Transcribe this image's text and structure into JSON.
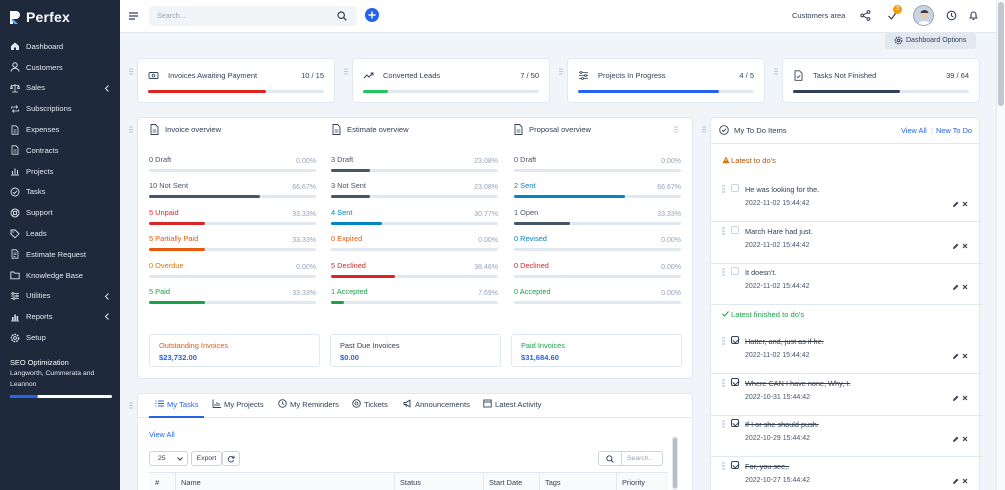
{
  "brand": {
    "name": "Perfex"
  },
  "sidebar": {
    "items": [
      {
        "label": "Dashboard",
        "icon": "home-icon",
        "chevron": false
      },
      {
        "label": "Customers",
        "icon": "user-icon",
        "chevron": false
      },
      {
        "label": "Sales",
        "icon": "scale-icon",
        "chevron": true
      },
      {
        "label": "Subscriptions",
        "icon": "repeat-icon",
        "chevron": false
      },
      {
        "label": "Expenses",
        "icon": "file-icon",
        "chevron": false
      },
      {
        "label": "Contracts",
        "icon": "file-icon",
        "chevron": false
      },
      {
        "label": "Projects",
        "icon": "chart-icon",
        "chevron": false
      },
      {
        "label": "Tasks",
        "icon": "check-circle-icon",
        "chevron": false
      },
      {
        "label": "Support",
        "icon": "lifebuoy-icon",
        "chevron": false
      },
      {
        "label": "Leads",
        "icon": "tag-icon",
        "chevron": false
      },
      {
        "label": "Estimate Request",
        "icon": "document-icon",
        "chevron": false
      },
      {
        "label": "Knowledge Base",
        "icon": "folder-icon",
        "chevron": false
      },
      {
        "label": "Utilities",
        "icon": "sliders-icon",
        "chevron": true
      },
      {
        "label": "Reports",
        "icon": "bar-chart-icon",
        "chevron": true
      },
      {
        "label": "Setup",
        "icon": "gear-icon",
        "chevron": false
      }
    ],
    "seo": {
      "title": "SEO Optimization",
      "subtitle": "Langworth, Cummerata and Leannon",
      "progress": 0.27
    }
  },
  "topbar": {
    "search_placeholder": "Search...",
    "customers_area": "Customers area",
    "tasks_badge": "3"
  },
  "dashboard_options": "Dashboard Options",
  "stats": [
    {
      "label": "Invoices Awaiting Payment",
      "value": "10 / 15",
      "progress": 0.67,
      "color": "#dc2626",
      "icon": "money-icon"
    },
    {
      "label": "Converted Leads",
      "value": "7 / 50",
      "progress": 0.14,
      "color": "#22c55e",
      "icon": "trend-icon"
    },
    {
      "label": "Projects In Progress",
      "value": "4 / 5",
      "progress": 0.8,
      "color": "#2563eb",
      "icon": "sliders-icon"
    },
    {
      "label": "Tasks Not Finished",
      "value": "39 / 64",
      "progress": 0.61,
      "color": "#334155",
      "icon": "task-file-icon"
    }
  ],
  "overview": {
    "invoice": {
      "title": "Invoice overview",
      "rows": [
        {
          "label": "0 Draft",
          "percent": "0.00%",
          "value": 0.0,
          "color": "#475569"
        },
        {
          "label": "10 Not Sent",
          "percent": "66.67%",
          "value": 0.6667,
          "color": "#475569"
        },
        {
          "label": "5 Unpaid",
          "percent": "33.33%",
          "value": 0.3333,
          "color": "#dc2626"
        },
        {
          "label": "5 Partially Paid",
          "percent": "33.33%",
          "value": 0.3333,
          "color": "#ea580c"
        },
        {
          "label": "0 Overdue",
          "percent": "0.00%",
          "value": 0.0,
          "color": "#d97706"
        },
        {
          "label": "5 Paid",
          "percent": "33.33%",
          "value": 0.3333,
          "color": "#16a34a"
        }
      ]
    },
    "estimate": {
      "title": "Estimate overview",
      "rows": [
        {
          "label": "3 Draft",
          "percent": "23.08%",
          "value": 0.2308,
          "color": "#475569"
        },
        {
          "label": "3 Not Sent",
          "percent": "23.08%",
          "value": 0.2308,
          "color": "#475569"
        },
        {
          "label": "4 Sent",
          "percent": "30.77%",
          "value": 0.3077,
          "color": "#0284c7"
        },
        {
          "label": "0 Expired",
          "percent": "0.00%",
          "value": 0.0,
          "color": "#ea580c"
        },
        {
          "label": "5 Declined",
          "percent": "38.46%",
          "value": 0.3846,
          "color": "#dc2626"
        },
        {
          "label": "1 Accepted",
          "percent": "7.69%",
          "value": 0.0769,
          "color": "#16a34a"
        }
      ]
    },
    "proposal": {
      "title": "Proposal overview",
      "rows": [
        {
          "label": "0 Draft",
          "percent": "0.00%",
          "value": 0.0,
          "color": "#475569"
        },
        {
          "label": "2 Sent",
          "percent": "66.67%",
          "value": 0.6667,
          "color": "#0284c7"
        },
        {
          "label": "1 Open",
          "percent": "33.33%",
          "value": 0.3333,
          "color": "#475569"
        },
        {
          "label": "0 Revised",
          "percent": "0.00%",
          "value": 0.0,
          "color": "#0284c7"
        },
        {
          "label": "0 Declined",
          "percent": "0.00%",
          "value": 0.0,
          "color": "#dc2626"
        },
        {
          "label": "0 Accepted",
          "percent": "0.00%",
          "value": 0.0,
          "color": "#16a34a"
        }
      ]
    },
    "totals": [
      {
        "label": "Outstanding Invoices",
        "value": "$23,732.00",
        "label_color": "#ea580c",
        "value_color": "#2563eb"
      },
      {
        "label": "Past Due Invoices",
        "value": "$0.00",
        "label_color": "#334155",
        "value_color": "#2563eb"
      },
      {
        "label": "Paid Invoices",
        "value": "$31,684.60",
        "label_color": "#16a34a",
        "value_color": "#2563eb"
      }
    ]
  },
  "tabs": [
    {
      "label": "My Tasks",
      "icon": "list-icon",
      "active": true
    },
    {
      "label": "My Projects",
      "icon": "chart-icon",
      "active": false
    },
    {
      "label": "My Reminders",
      "icon": "clock-icon",
      "active": false
    },
    {
      "label": "Tickets",
      "icon": "lifebuoy-icon",
      "active": false
    },
    {
      "label": "Announcements",
      "icon": "megaphone-icon",
      "active": false
    },
    {
      "label": "Latest Activity",
      "icon": "window-icon",
      "active": false
    }
  ],
  "tasks_panel": {
    "view_all": "View All",
    "page_length": "25",
    "export": "Export",
    "search_placeholder": "Search..",
    "columns": [
      "#",
      "Name",
      "Status",
      "Start Date",
      "Tags",
      "Priority"
    ]
  },
  "todo": {
    "title": "My To Do Items",
    "view_all": "View All",
    "new_todo": "New To Do",
    "latest_title": "Latest to do's",
    "finished_title": "Latest finished to do's",
    "latest": [
      {
        "text": "He was looking for the.",
        "date": "2022-11-02 15:44:42"
      },
      {
        "text": "March Hare had just.",
        "date": "2022-11-02 15:44:42"
      },
      {
        "text": "It doesn't.",
        "date": "2022-11-02 15:44:42"
      }
    ],
    "finished": [
      {
        "text": "Hatter, and, just as if he.",
        "date": "2022-11-02 15:44:42"
      },
      {
        "text": "Where CAN I have none, Why, I.",
        "date": "2022-10-31 15:44:42"
      },
      {
        "text": "If I or she should push.",
        "date": "2022-10-29 15:44:42"
      },
      {
        "text": "For, you see,.",
        "date": "2022-10-27 15:44:42"
      }
    ]
  }
}
